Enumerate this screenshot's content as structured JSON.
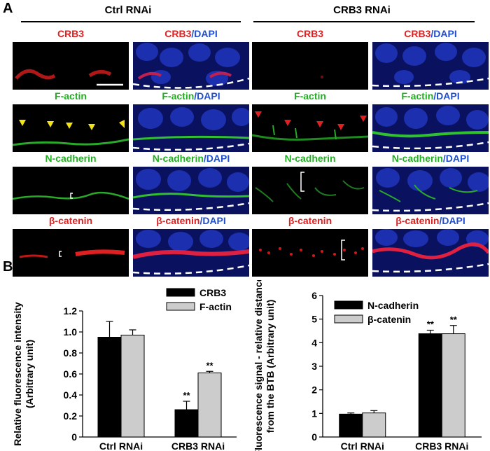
{
  "panel_a": {
    "letter": "A",
    "groups": [
      "Ctrl RNAi",
      "CRB3 RNAi"
    ],
    "labels": {
      "crb3": "CRB3",
      "factin": "F-actin",
      "ncad": "N-cadherin",
      "bcat": "β-catenin",
      "dapi_suffix": "/DAPI"
    }
  },
  "panel_b": {
    "letter": "B"
  },
  "chart_data": [
    {
      "type": "bar",
      "ylabel": "Relative fluorescence intensity (Arbitrary unit)",
      "categories": [
        "Ctrl RNAi",
        "CRB3 RNAi"
      ],
      "series": [
        {
          "name": "CRB3",
          "values": [
            0.95,
            0.26
          ],
          "errors": [
            0.15,
            0.08
          ],
          "color": "#000000"
        },
        {
          "name": "F-actin",
          "values": [
            0.97,
            0.61
          ],
          "errors": [
            0.05,
            0.015
          ],
          "color": "#cccccc"
        }
      ],
      "ylim": [
        0,
        1.2
      ],
      "yticks": [
        "0",
        "0.2",
        "0.4",
        "0.6",
        "0.8",
        "1.0",
        "1.2"
      ],
      "significance": [
        [
          "",
          ""
        ],
        [
          "**",
          "**"
        ]
      ],
      "legend": "top-right"
    },
    {
      "type": "bar",
      "ylabel": "Fluorescence signal - relative distance from the BTB (Arbitrary unit)",
      "categories": [
        "Ctrl RNAi",
        "CRB3 RNAi"
      ],
      "series": [
        {
          "name": "N-cadherin",
          "values": [
            0.97,
            4.38
          ],
          "errors": [
            0.05,
            0.15
          ],
          "color": "#000000"
        },
        {
          "name": "β-catenin",
          "values": [
            1.02,
            4.38
          ],
          "errors": [
            0.1,
            0.35
          ],
          "color": "#cccccc"
        }
      ],
      "ylim": [
        0,
        6
      ],
      "yticks": [
        "0",
        "1",
        "2",
        "3",
        "4",
        "5",
        "6"
      ],
      "significance": [
        [
          "",
          ""
        ],
        [
          "**",
          "**"
        ]
      ],
      "legend": "top-left"
    }
  ]
}
